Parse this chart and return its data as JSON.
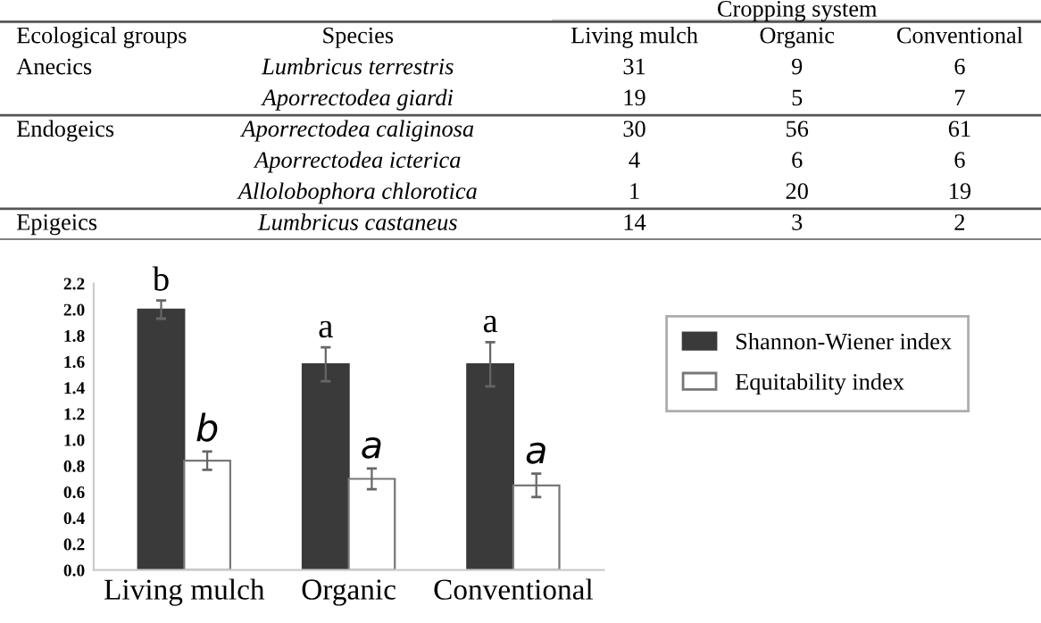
{
  "chart_data": [
    {
      "type": "heatmap",
      "title": "Cropping system",
      "ylabel": "Species",
      "categories": [
        "Living mulch",
        "Organic",
        "Conventional"
      ],
      "y_categories": [
        "Lumbricus terrestris",
        "Aporrectodea giardi",
        "Aporrectodea caliginosa",
        "Aporrectodea icterica",
        "Allolobophora chlorotica",
        "Lumbricus castaneus"
      ],
      "cells": [
        [
          31,
          9,
          6
        ],
        [
          19,
          5,
          7
        ],
        [
          30,
          56,
          61
        ],
        [
          4,
          6,
          6
        ],
        [
          1,
          20,
          19
        ],
        [
          14,
          3,
          2
        ]
      ],
      "y2_categories": [
        "Anecics",
        null,
        "Endogeics",
        null,
        null,
        "Epigeics"
      ],
      "annotations": [
        "Ecological groups"
      ],
      "data_labels": true
    },
    {
      "type": "bar",
      "categories": [
        "Living mulch",
        "Organic",
        "Conventional"
      ],
      "series": [
        {
          "name": "Shannon-Wiener index",
          "color": "#3a3a3a",
          "values": [
            2.0,
            1.58,
            1.58
          ],
          "errors": [
            0.07,
            0.13,
            0.17
          ]
        },
        {
          "name": "Equitability index",
          "color": "#ffffff",
          "values": [
            0.84,
            0.7,
            0.65
          ],
          "errors": [
            0.07,
            0.08,
            0.09
          ]
        }
      ],
      "annotations": [
        "b",
        "a",
        "a",
        "b",
        "a",
        "a"
      ],
      "ylim": [
        0,
        2.2
      ],
      "yticks": [
        {
          "value": 0,
          "label": "0.0"
        },
        {
          "value": 0.2,
          "label": "0.2"
        },
        {
          "value": 0.4,
          "label": "0.4"
        },
        {
          "value": 0.6,
          "label": "0.6"
        },
        {
          "value": 0.8,
          "label": "0.8"
        },
        {
          "value": 1.0,
          "label": "1.0"
        },
        {
          "value": 1.2,
          "label": "1.2"
        },
        {
          "value": 1.4,
          "label": "1.4"
        },
        {
          "value": 1.6,
          "label": "1.6"
        },
        {
          "value": 1.8,
          "label": "1.8"
        },
        {
          "value": 2.0,
          "label": "2.0"
        },
        {
          "value": 2.2,
          "label": "2.2"
        }
      ],
      "grid": false,
      "legend": "right"
    }
  ]
}
